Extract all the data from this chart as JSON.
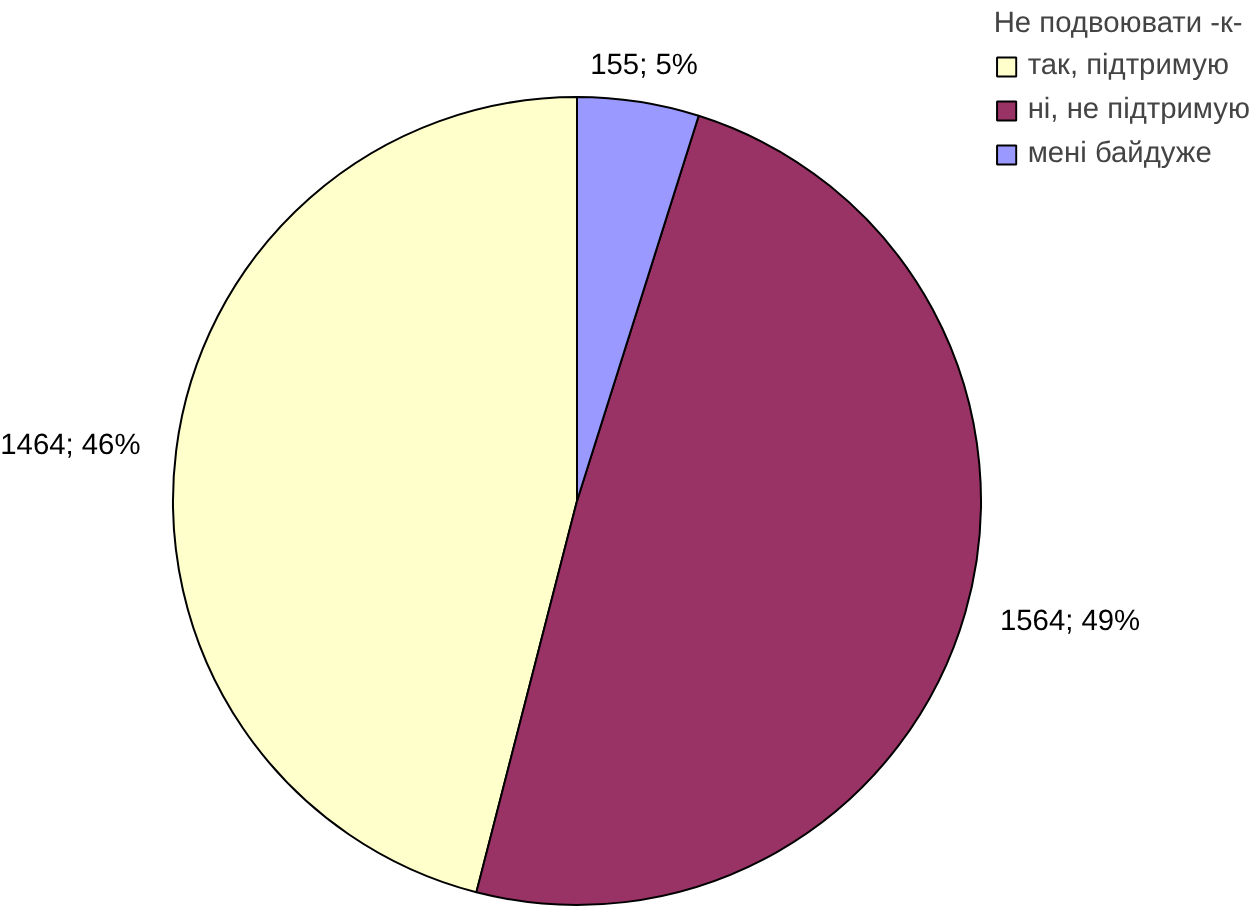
{
  "chart_data": {
    "type": "pie",
    "legend_title": "Не подвоювати -к-",
    "categories": [
      "так, підтримую",
      "ні, не підтримую",
      "мені байдуже"
    ],
    "values": [
      1464,
      1564,
      155
    ],
    "colors": [
      "#ffffcc",
      "#993366",
      "#9999ff"
    ],
    "value_labels": [
      "1464; 46%",
      "1564; 49%",
      "155; 5%"
    ],
    "legend": "top right"
  }
}
